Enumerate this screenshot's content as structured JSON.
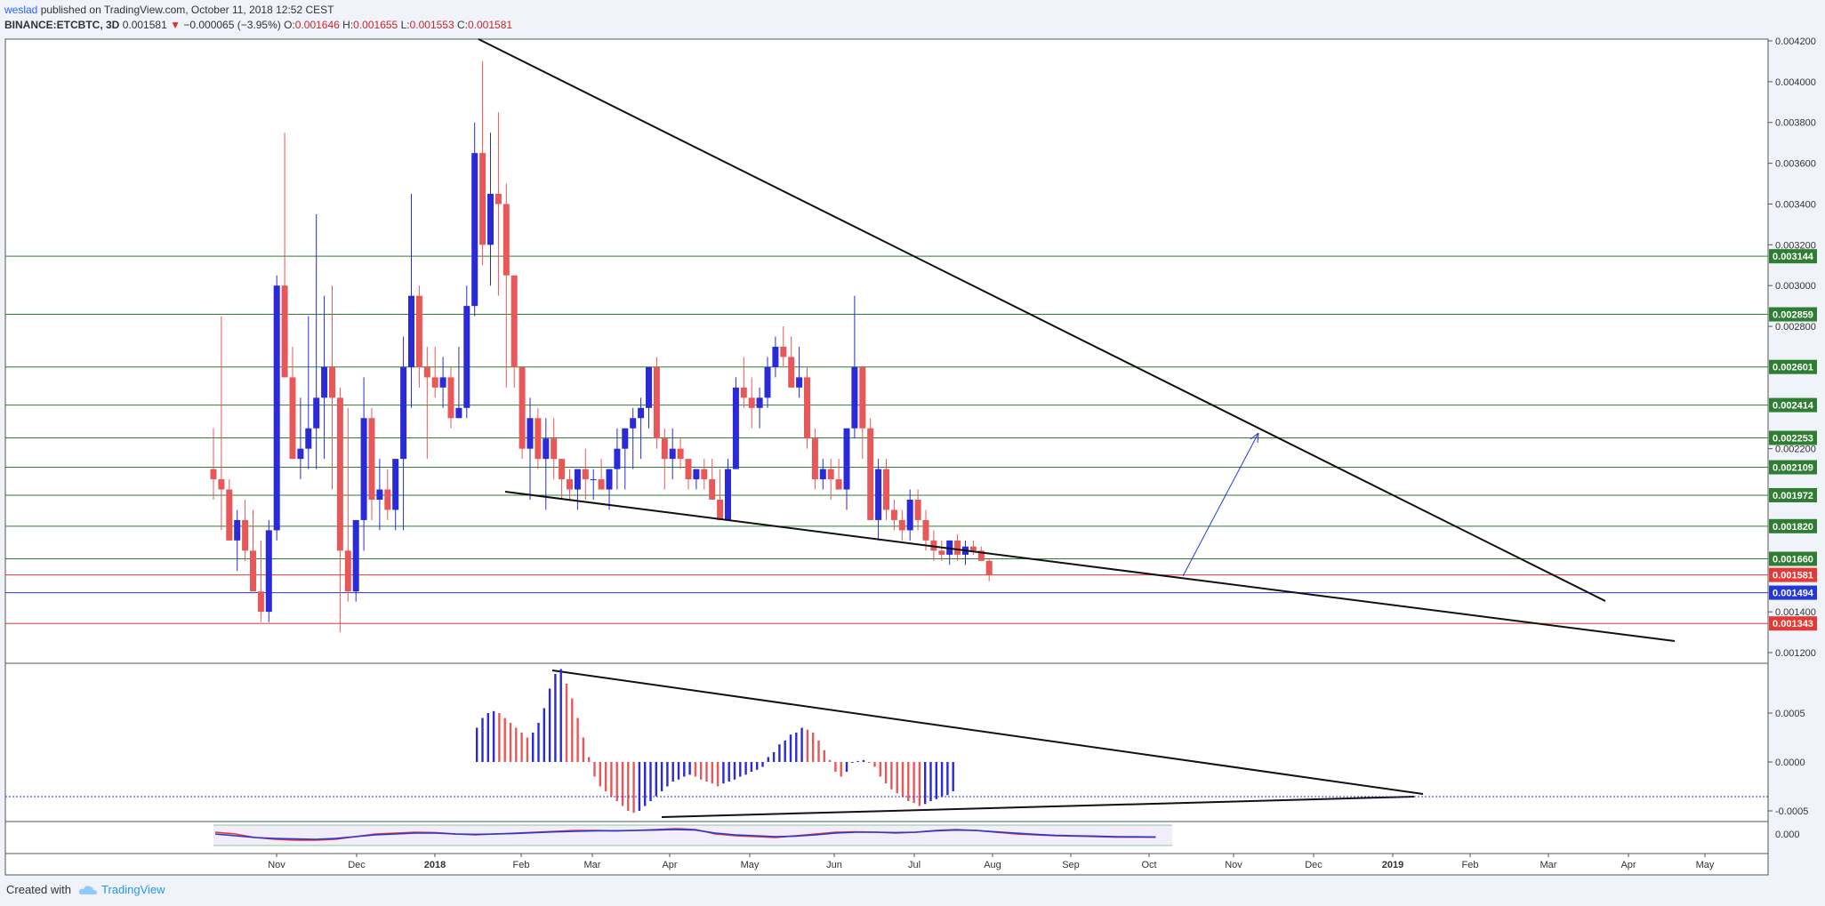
{
  "header": {
    "user": "weslad",
    "published": "published on TradingView.com, October 11, 2018 12:52 CEST",
    "symbol": "BINANCE:ETCBTC, 3D",
    "last": "0.001581",
    "arrow": "▼",
    "change": "−0.000065 (−3.95%)",
    "o_label": "O:",
    "o": "0.001646",
    "h_label": "H:",
    "h": "0.001655",
    "l_label": "L:",
    "l": "0.001553",
    "c_label": "C:",
    "c": "0.001581"
  },
  "footer": {
    "created_with": "Created with",
    "brand": "TradingView"
  },
  "colors": {
    "up": "#2a2ad8",
    "down": "#e85858",
    "green_level": "#2e7d32",
    "blue_level": "#2438d6",
    "red_level": "#e53935",
    "trend": "#111111"
  },
  "chart_data": [
    {
      "type": "candlestick",
      "title": "",
      "ylim": [
        0.0011,
        0.00425
      ],
      "y_ticks": [
        "0.004200",
        "0.004000",
        "0.003800",
        "0.003600",
        "0.003400",
        "0.003200",
        "0.003000",
        "0.002800",
        "0.002200",
        "0.001400",
        "0.001200"
      ],
      "x_ticks": [
        "Nov",
        "Dec",
        "2018",
        "Feb",
        "Mar",
        "Apr",
        "May",
        "Jun",
        "Jul",
        "Aug",
        "Sep",
        "Oct",
        "Nov",
        "Dec",
        "2019",
        "Feb",
        "Mar",
        "Apr",
        "May"
      ],
      "candles_ohlc": [
        [
          0.0021,
          0.0023,
          0.00195,
          0.00205
        ],
        [
          0.00205,
          0.00285,
          0.0018,
          0.002
        ],
        [
          0.002,
          0.00205,
          0.00175,
          0.00175
        ],
        [
          0.00175,
          0.0019,
          0.0016,
          0.00185
        ],
        [
          0.00185,
          0.00195,
          0.00165,
          0.0017
        ],
        [
          0.0017,
          0.0019,
          0.0016,
          0.0015
        ],
        [
          0.0015,
          0.00175,
          0.00135,
          0.0014
        ],
        [
          0.0014,
          0.00185,
          0.00135,
          0.0018
        ],
        [
          0.0018,
          0.00305,
          0.00175,
          0.003
        ],
        [
          0.003,
          0.00375,
          0.00255,
          0.00255
        ],
        [
          0.00255,
          0.0027,
          0.00215,
          0.00215
        ],
        [
          0.00215,
          0.00245,
          0.00205,
          0.0022
        ],
        [
          0.0022,
          0.00285,
          0.0021,
          0.0023
        ],
        [
          0.0023,
          0.00335,
          0.0021,
          0.00245
        ],
        [
          0.00245,
          0.00295,
          0.00215,
          0.0026
        ],
        [
          0.0026,
          0.003,
          0.002,
          0.00245
        ],
        [
          0.00245,
          0.0025,
          0.0013,
          0.0017
        ],
        [
          0.0017,
          0.0024,
          0.00145,
          0.0015
        ],
        [
          0.0015,
          0.00185,
          0.00145,
          0.00185
        ],
        [
          0.00185,
          0.00255,
          0.0017,
          0.00235
        ],
        [
          0.00235,
          0.0024,
          0.00185,
          0.00195
        ],
        [
          0.00195,
          0.00215,
          0.0018,
          0.002
        ],
        [
          0.002,
          0.0021,
          0.00185,
          0.0019
        ],
        [
          0.0019,
          0.00215,
          0.0018,
          0.00215
        ],
        [
          0.00215,
          0.00275,
          0.0018,
          0.0026
        ],
        [
          0.0026,
          0.00345,
          0.0024,
          0.00295
        ],
        [
          0.00295,
          0.003,
          0.0025,
          0.0026
        ],
        [
          0.0026,
          0.0027,
          0.00215,
          0.00255
        ],
        [
          0.00255,
          0.0027,
          0.00245,
          0.0025
        ],
        [
          0.0025,
          0.00265,
          0.0024,
          0.00255
        ],
        [
          0.00255,
          0.0026,
          0.0023,
          0.00235
        ],
        [
          0.00235,
          0.0027,
          0.00235,
          0.0024
        ],
        [
          0.0024,
          0.003,
          0.00235,
          0.0029
        ],
        [
          0.0029,
          0.0038,
          0.00285,
          0.00365
        ],
        [
          0.00365,
          0.0041,
          0.0031,
          0.0032
        ],
        [
          0.0032,
          0.00375,
          0.003,
          0.00345
        ],
        [
          0.00345,
          0.00385,
          0.00295,
          0.0034
        ],
        [
          0.0034,
          0.0035,
          0.0025,
          0.00305
        ],
        [
          0.00305,
          0.003,
          0.0025,
          0.0026
        ],
        [
          0.0026,
          0.0026,
          0.00215,
          0.0022
        ],
        [
          0.0022,
          0.00245,
          0.00195,
          0.00235
        ],
        [
          0.00235,
          0.0024,
          0.0021,
          0.00215
        ],
        [
          0.00215,
          0.00235,
          0.0019,
          0.00225
        ],
        [
          0.00225,
          0.00235,
          0.00205,
          0.00215
        ],
        [
          0.00215,
          0.00215,
          0.00195,
          0.00205
        ],
        [
          0.00205,
          0.0021,
          0.00195,
          0.002
        ],
        [
          0.002,
          0.00205,
          0.0019,
          0.0021
        ],
        [
          0.0021,
          0.0022,
          0.00195,
          0.00205
        ],
        [
          0.00205,
          0.0021,
          0.00195,
          0.00205
        ],
        [
          0.00205,
          0.00215,
          0.002,
          0.002
        ],
        [
          0.002,
          0.0021,
          0.0019,
          0.0021
        ],
        [
          0.0021,
          0.0023,
          0.002,
          0.0022
        ],
        [
          0.0022,
          0.0023,
          0.002,
          0.0023
        ],
        [
          0.0023,
          0.0024,
          0.0021,
          0.00235
        ],
        [
          0.00235,
          0.00245,
          0.00215,
          0.0024
        ],
        [
          0.0024,
          0.00255,
          0.0023,
          0.0026
        ],
        [
          0.0026,
          0.00265,
          0.0022,
          0.00225
        ],
        [
          0.00225,
          0.0023,
          0.002,
          0.00215
        ],
        [
          0.00215,
          0.0023,
          0.00205,
          0.0022
        ],
        [
          0.0022,
          0.00225,
          0.0021,
          0.00215
        ],
        [
          0.00215,
          0.00215,
          0.002,
          0.00205
        ],
        [
          0.00205,
          0.0021,
          0.002,
          0.0021
        ],
        [
          0.0021,
          0.00215,
          0.002,
          0.00205
        ],
        [
          0.00205,
          0.00215,
          0.00195,
          0.00195
        ],
        [
          0.00195,
          0.0021,
          0.00185,
          0.00185
        ],
        [
          0.00185,
          0.00215,
          0.00185,
          0.0021
        ],
        [
          0.0021,
          0.00255,
          0.0021,
          0.0025
        ],
        [
          0.0025,
          0.00265,
          0.0024,
          0.00245
        ],
        [
          0.00245,
          0.00255,
          0.0023,
          0.0024
        ],
        [
          0.0024,
          0.0025,
          0.0023,
          0.00245
        ],
        [
          0.00245,
          0.00265,
          0.0024,
          0.0026
        ],
        [
          0.0026,
          0.00275,
          0.00255,
          0.0027
        ],
        [
          0.0027,
          0.0028,
          0.0026,
          0.00265
        ],
        [
          0.00265,
          0.00275,
          0.0025,
          0.0025
        ],
        [
          0.0025,
          0.0027,
          0.00245,
          0.00255
        ],
        [
          0.00255,
          0.0026,
          0.0022,
          0.00225
        ],
        [
          0.00225,
          0.0023,
          0.002,
          0.00205
        ],
        [
          0.00205,
          0.00215,
          0.002,
          0.0021
        ],
        [
          0.0021,
          0.00215,
          0.00195,
          0.00205
        ],
        [
          0.00205,
          0.00215,
          0.002,
          0.002
        ],
        [
          0.002,
          0.0023,
          0.0019,
          0.0023
        ],
        [
          0.0023,
          0.00295,
          0.00225,
          0.0026
        ],
        [
          0.0026,
          0.0026,
          0.00215,
          0.0023
        ],
        [
          0.0023,
          0.00235,
          0.00185,
          0.00185
        ],
        [
          0.00185,
          0.00215,
          0.00175,
          0.0021
        ],
        [
          0.0021,
          0.00215,
          0.00185,
          0.0019
        ],
        [
          0.0019,
          0.00195,
          0.0018,
          0.00185
        ],
        [
          0.00185,
          0.0019,
          0.00175,
          0.0018
        ],
        [
          0.0018,
          0.002,
          0.00175,
          0.00195
        ],
        [
          0.00195,
          0.002,
          0.0018,
          0.00185
        ],
        [
          0.00185,
          0.0019,
          0.0017,
          0.00175
        ],
        [
          0.00175,
          0.0018,
          0.00165,
          0.0017
        ],
        [
          0.0017,
          0.00175,
          0.00165,
          0.00168
        ],
        [
          0.00168,
          0.00175,
          0.00163,
          0.00175
        ],
        [
          0.00175,
          0.00178,
          0.00165,
          0.00168
        ],
        [
          0.00168,
          0.00175,
          0.00163,
          0.00172
        ],
        [
          0.00172,
          0.00175,
          0.00168,
          0.0017
        ],
        [
          0.0017,
          0.00172,
          0.00165,
          0.00165
        ],
        [
          0.00165,
          0.00166,
          0.00155,
          0.00158
        ]
      ],
      "levels": [
        {
          "value": 0.003144,
          "label": "0.003144",
          "color": "green"
        },
        {
          "value": 0.002859,
          "label": "0.002859",
          "color": "green"
        },
        {
          "value": 0.002601,
          "label": "0.002601",
          "color": "green"
        },
        {
          "value": 0.002414,
          "label": "0.002414",
          "color": "green"
        },
        {
          "value": 0.002253,
          "label": "0.002253",
          "color": "green"
        },
        {
          "value": 0.002109,
          "label": "0.002109",
          "color": "green"
        },
        {
          "value": 0.001972,
          "label": "0.001972",
          "color": "green"
        },
        {
          "value": 0.00182,
          "label": "0.001820",
          "color": "green"
        },
        {
          "value": 0.00166,
          "label": "0.001660",
          "color": "green"
        },
        {
          "value": 0.001581,
          "label": "0.001581",
          "color": "red"
        },
        {
          "value": 0.001494,
          "label": "0.001494",
          "color": "blue"
        },
        {
          "value": 0.001343,
          "label": "0.001343",
          "color": "red"
        }
      ]
    },
    {
      "type": "bar",
      "title": "",
      "ylim": [
        -0.00065,
        0.00105
      ],
      "y_ticks": [
        "0.0005",
        "0.0000",
        "-0.0005"
      ],
      "values": [
        0.00035,
        0.00045,
        0.0005,
        0.00052,
        0.0005,
        0.00045,
        0.0004,
        0.00035,
        0.0003,
        0.00025,
        0.0003,
        0.0004,
        0.00055,
        0.00075,
        0.0009,
        0.00095,
        0.0008,
        0.00065,
        0.00045,
        0.00025,
        5e-05,
        -0.00015,
        -0.00025,
        -0.0003,
        -0.00035,
        -0.0004,
        -0.00045,
        -0.0005,
        -0.00052,
        -0.0005,
        -0.00045,
        -0.0004,
        -0.00035,
        -0.0003,
        -0.00025,
        -0.0002,
        -0.00018,
        -0.00015,
        -0.00013,
        -0.00015,
        -0.00018,
        -0.0002,
        -0.00022,
        -0.00025,
        -0.00022,
        -0.0002,
        -0.00018,
        -0.00015,
        -0.00013,
        -0.0001,
        -8e-05,
        -5e-05,
        5e-05,
        0.0001,
        0.00018,
        0.00022,
        0.00028,
        0.0003,
        0.00035,
        0.00033,
        0.0003,
        0.00022,
        0.00012,
        2e-05,
        -0.0001,
        -0.00015,
        -0.0001,
        0.0,
        1e-05,
        2e-05,
        0.0,
        -5e-05,
        -0.00015,
        -0.00022,
        -0.00028,
        -0.00032,
        -0.00036,
        -0.0004,
        -0.00042,
        -0.00045,
        -0.00043,
        -0.0004,
        -0.00038,
        -0.00036,
        -0.00034,
        -0.0003
      ]
    },
    {
      "type": "line",
      "title": "",
      "y_ticks": [
        "0.000"
      ],
      "ylim": [
        -0.6,
        0.6
      ],
      "series": [
        {
          "values": [
            0.1,
            0.0,
            -0.2,
            -0.3,
            -0.35,
            -0.35,
            -0.3,
            -0.15,
            0.0,
            0.05,
            0.1,
            0.08,
            0.0,
            -0.05,
            0.0,
            0.05,
            0.1,
            0.15,
            0.2,
            0.2,
            0.18,
            0.2,
            0.25,
            0.3,
            0.25,
            0.0,
            -0.1,
            -0.15,
            -0.2,
            -0.1,
            0.0,
            0.1,
            0.12,
            0.1,
            0.05,
            0.1,
            0.2,
            0.25,
            0.2,
            0.1,
            0.0,
            -0.05,
            -0.1,
            -0.12,
            -0.15,
            -0.18,
            -0.18,
            -0.18
          ]
        },
        {
          "values": [
            0.0,
            -0.1,
            -0.2,
            -0.25,
            -0.28,
            -0.3,
            -0.25,
            -0.15,
            -0.05,
            0.0,
            0.05,
            0.05,
            0.0,
            -0.02,
            0.0,
            0.03,
            0.08,
            0.12,
            0.15,
            0.18,
            0.18,
            0.2,
            0.22,
            0.25,
            0.22,
            0.05,
            -0.05,
            -0.1,
            -0.15,
            -0.12,
            -0.05,
            0.05,
            0.1,
            0.1,
            0.08,
            0.1,
            0.18,
            0.22,
            0.2,
            0.12,
            0.05,
            -0.02,
            -0.08,
            -0.1,
            -0.12,
            -0.15,
            -0.16,
            -0.17
          ]
        }
      ]
    }
  ]
}
